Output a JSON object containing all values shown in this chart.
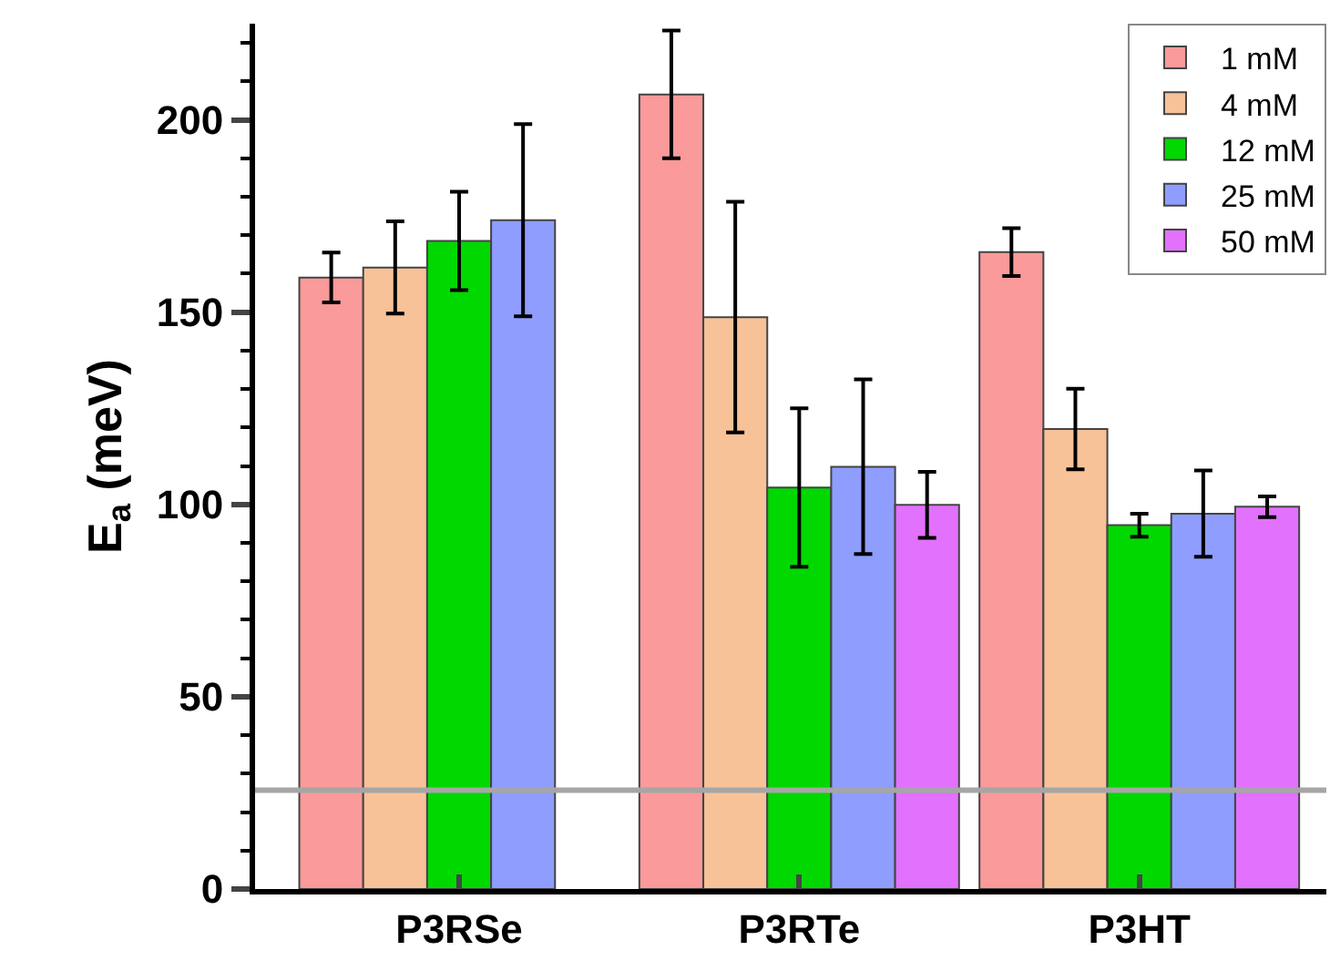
{
  "chart_data": {
    "type": "bar",
    "ylabel": "E$_{a}$ (meV)",
    "categories": [
      "P3RSe",
      "P3RTe",
      "P3HT"
    ],
    "series": [
      {
        "name": "1 mM",
        "color": "#fa9a9a",
        "values": [
          159.0,
          206.6,
          165.6
        ],
        "errors": [
          6.5,
          16.6,
          6.2
        ]
      },
      {
        "name": "4 mM",
        "color": "#f7c298",
        "values": [
          161.6,
          148.7,
          119.6
        ],
        "errors": [
          12,
          30,
          10.5
        ]
      },
      {
        "name": "12 mM",
        "color": "#00d800",
        "values": [
          168.5,
          104.4,
          94.6
        ],
        "errors": [
          12.8,
          20.6,
          3
        ]
      },
      {
        "name": "25 mM",
        "color": "#8f9dff",
        "values": [
          173.9,
          109.8,
          97.6
        ],
        "errors": [
          25,
          22.7,
          11.2
        ]
      },
      {
        "name": "50 mM",
        "color": "#e271fe",
        "values": [
          null,
          99.9,
          99.4
        ],
        "errors": [
          null,
          8.6,
          2.7
        ]
      }
    ],
    "ylim": [
      0,
      225
    ],
    "yticks": [
      0,
      50,
      100,
      150,
      200
    ],
    "ref_lines": [
      {
        "axis": "y",
        "value": 25.7,
        "color": "#a6a6a6"
      }
    ],
    "legend": "top right"
  }
}
